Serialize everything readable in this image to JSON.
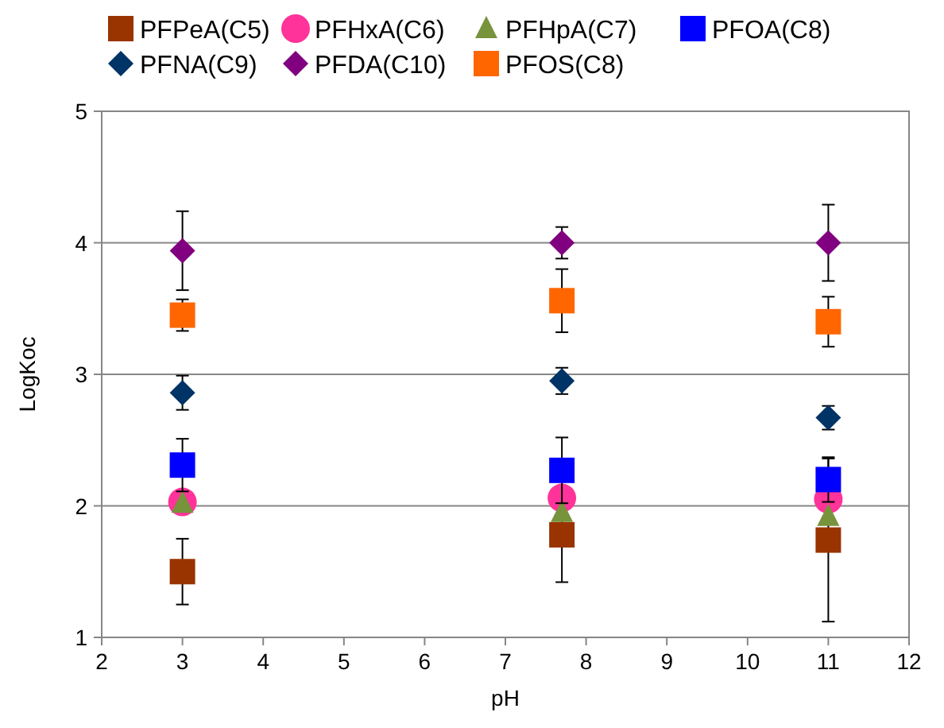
{
  "chart_data": {
    "type": "scatter",
    "xlabel": "pH",
    "ylabel": "LogKoc",
    "x": [
      3,
      7.7,
      11
    ],
    "xlim": [
      2,
      12
    ],
    "xticks": [
      2,
      3,
      4,
      5,
      6,
      7,
      8,
      9,
      10,
      11,
      12
    ],
    "ylim": [
      1,
      5
    ],
    "yticks": [
      1,
      2,
      3,
      4,
      5
    ],
    "grid": "y",
    "legend": "top",
    "series": [
      {
        "name": "PFPeA(C5)",
        "color": "#993300",
        "marker": "square",
        "values": [
          1.5,
          1.78,
          1.74
        ],
        "errors": [
          0.25,
          0.36,
          0.62
        ]
      },
      {
        "name": "PFHxA(C6)",
        "color": "#ff3399",
        "marker": "circle",
        "values": [
          2.03,
          2.06,
          2.05
        ],
        "errors": [
          null,
          null,
          null
        ]
      },
      {
        "name": "PFHpA(C7)",
        "color": "#77933c",
        "marker": "triangle",
        "values": [
          2.02,
          1.95,
          1.92
        ],
        "errors": [
          null,
          null,
          null
        ]
      },
      {
        "name": "PFOA(C8)",
        "color": "#0000ff",
        "marker": "square",
        "values": [
          2.31,
          2.27,
          2.2
        ],
        "errors": [
          0.2,
          0.25,
          0.17
        ]
      },
      {
        "name": "PFNA(C9)",
        "color": "#003366",
        "marker": "diamond",
        "values": [
          2.86,
          2.95,
          2.67
        ],
        "errors": [
          0.13,
          0.1,
          0.09
        ]
      },
      {
        "name": "PFDA(C10)",
        "color": "#800080",
        "marker": "diamond",
        "values": [
          3.94,
          4.0,
          4.0
        ],
        "errors": [
          0.3,
          0.12,
          0.29
        ]
      },
      {
        "name": "PFOS(C8)",
        "color": "#ff6600",
        "marker": "square",
        "values": [
          3.45,
          3.56,
          3.4
        ],
        "errors": [
          0.12,
          0.24,
          0.19
        ]
      }
    ]
  }
}
